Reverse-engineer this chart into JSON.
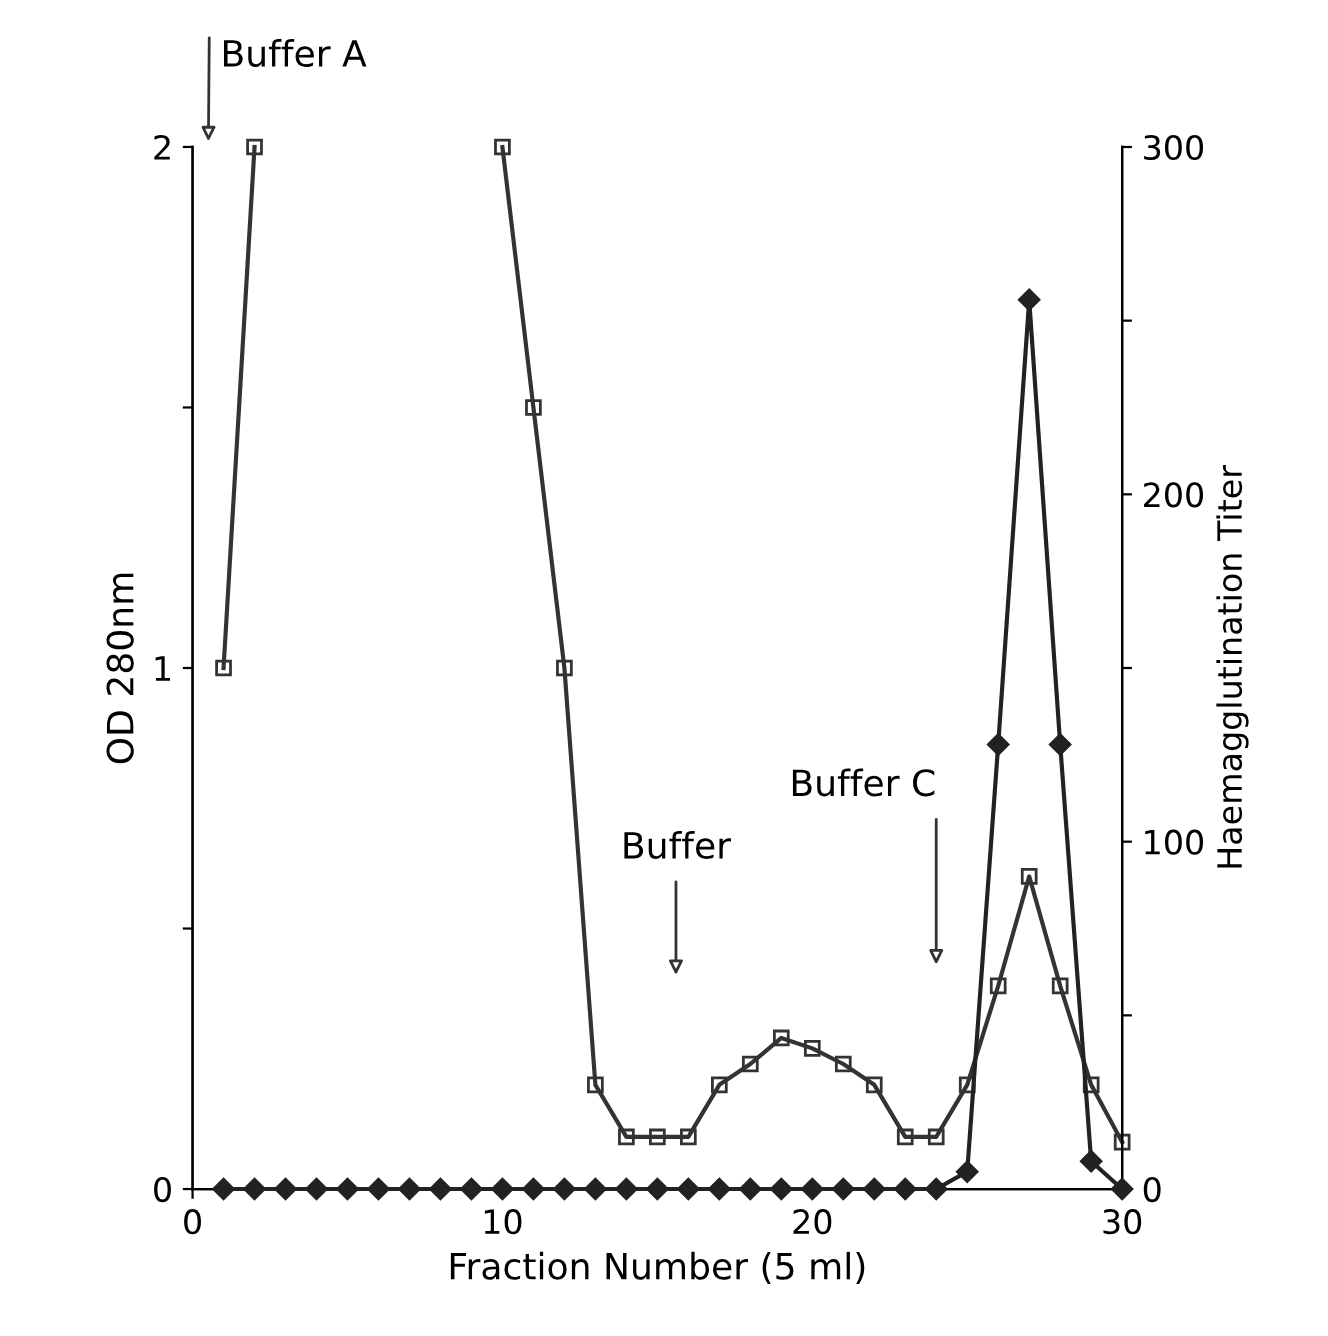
{
  "chart_data": {
    "type": "line",
    "xlabel": "Fraction Number (5 ml)",
    "ylabel": "OD 280nm",
    "y2label": "Haemagglutination Titer",
    "x": [
      1,
      2,
      3,
      4,
      5,
      6,
      7,
      8,
      9,
      10,
      11,
      12,
      13,
      14,
      15,
      16,
      17,
      18,
      19,
      20,
      21,
      22,
      23,
      24,
      25,
      26,
      27,
      28,
      29,
      30
    ],
    "series": [
      {
        "color": "#333333",
        "marker": "square",
        "values": [
          1.0,
          2.0,
          null,
          null,
          null,
          null,
          null,
          null,
          null,
          2.0,
          1.5,
          1.0,
          0.2,
          0.1,
          0.1,
          0.1,
          0.2,
          0.24,
          0.29,
          0.27,
          0.24,
          0.2,
          0.1,
          0.1,
          0.2,
          0.39,
          0.6,
          0.39,
          0.2,
          0.09
        ]
      },
      {
        "color": "#222222",
        "marker": "diamond",
        "axis": "y2",
        "values": [
          0,
          0,
          0,
          0,
          0,
          0,
          0,
          0,
          0,
          0,
          0,
          0,
          0,
          0,
          0,
          0,
          0,
          0,
          0,
          0,
          0,
          0,
          0,
          0,
          5,
          128,
          256,
          128,
          8,
          0
        ]
      }
    ],
    "xlim": [
      0,
      30
    ],
    "xticks": [
      0,
      10,
      20,
      30
    ],
    "ylim": [
      0,
      2
    ],
    "yticks": [
      0,
      {
        "value": 0.5,
        "label": null
      },
      1,
      {
        "value": 1.5,
        "label": null
      },
      2
    ],
    "y2lim": [
      0,
      300
    ],
    "y2ticks": [
      0,
      {
        "value": 50,
        "label": null
      },
      100,
      {
        "value": 150,
        "label": null
      },
      200,
      {
        "value": 250,
        "label": null
      },
      300
    ],
    "annotations": [
      "Buffer A",
      "Buffer",
      "Buffer C"
    ],
    "grid": false,
    "legend": false,
    "line_style": "solid"
  }
}
